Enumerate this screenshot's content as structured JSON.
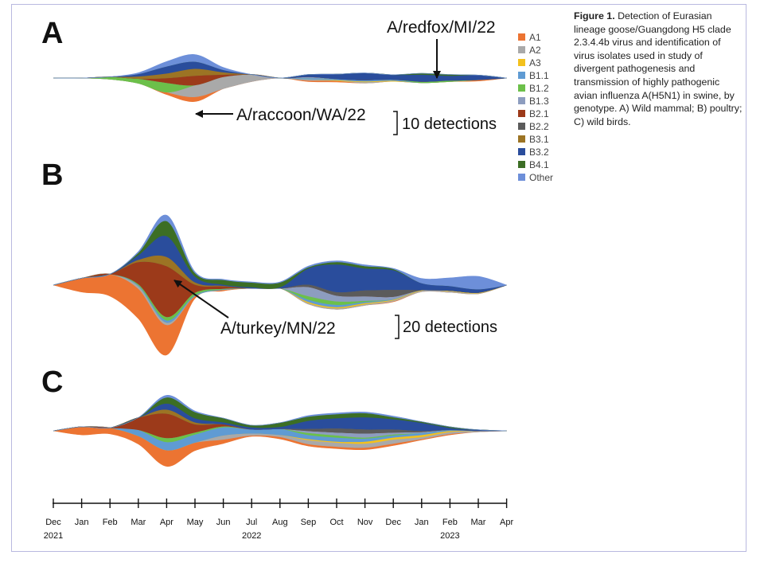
{
  "caption": {
    "label": "Figure 1.",
    "text": "Detection of Eurasian lineage goose/Guangdong H5 clade 2.3.4.4b virus and identification of virus isolates used in study of divergent pathogenesis and transmission of highly pathogenic avian influenza A(H5N1) in swine, by genotype. A) Wild mammal; B) poultry; C) wild birds."
  },
  "panels": {
    "A": {
      "letter": "A",
      "annotations": [
        "A/redfox/MI/22",
        "A/raccoon/WA/22"
      ],
      "scale_label": "10 detections"
    },
    "B": {
      "letter": "B",
      "annotations": [
        "A/turkey/MN/22"
      ],
      "scale_label": "20 detections"
    },
    "C": {
      "letter": "C"
    }
  },
  "chart_data": {
    "type": "area",
    "subtype": "streamgraph",
    "x": [
      "Dec 2021",
      "Jan",
      "Feb",
      "Mar",
      "Apr",
      "May",
      "Jun",
      "Jul",
      "Aug",
      "Sep",
      "Oct",
      "Nov",
      "Dec",
      "Jan 2023",
      "Feb",
      "Mar",
      "Apr"
    ],
    "x_tick_labels": [
      {
        "month": "Dec",
        "year": "2021"
      },
      {
        "month": "Jan",
        "year": ""
      },
      {
        "month": "Feb",
        "year": ""
      },
      {
        "month": "Mar",
        "year": ""
      },
      {
        "month": "Apr",
        "year": ""
      },
      {
        "month": "May",
        "year": ""
      },
      {
        "month": "Jun",
        "year": ""
      },
      {
        "month": "Jul",
        "year": "2022"
      },
      {
        "month": "Aug",
        "year": ""
      },
      {
        "month": "Sep",
        "year": ""
      },
      {
        "month": "Oct",
        "year": ""
      },
      {
        "month": "Nov",
        "year": ""
      },
      {
        "month": "Dec",
        "year": ""
      },
      {
        "month": "Jan",
        "year": ""
      },
      {
        "month": "Feb",
        "year": "2023"
      },
      {
        "month": "Mar",
        "year": ""
      },
      {
        "month": "Apr",
        "year": ""
      }
    ],
    "legend": [
      {
        "name": "A1",
        "color": "#ec7432"
      },
      {
        "name": "A2",
        "color": "#a9a9a9"
      },
      {
        "name": "A3",
        "color": "#f3c11d"
      },
      {
        "name": "B1.1",
        "color": "#5f9bd3"
      },
      {
        "name": "B1.2",
        "color": "#6cc04a"
      },
      {
        "name": "B1.3",
        "color": "#8d9dbf"
      },
      {
        "name": "B2.1",
        "color": "#9c3a1a"
      },
      {
        "name": "B2.2",
        "color": "#5b5b5b"
      },
      {
        "name": "B3.1",
        "color": "#9c7424"
      },
      {
        "name": "B3.2",
        "color": "#2a4d9c"
      },
      {
        "name": "B4.1",
        "color": "#3c6e25"
      },
      {
        "name": "Other",
        "color": "#6d8fd9"
      }
    ],
    "panels": [
      {
        "name": "A) Wild mammal",
        "series": [
          {
            "name": "A1",
            "values": [
              0,
              0,
              0,
              0,
              1,
              2,
              0,
              0,
              0,
              0.5,
              0.5,
              0,
              0,
              0,
              0,
              0.5,
              0
            ]
          },
          {
            "name": "A2",
            "values": [
              0,
              0,
              0,
              0,
              0,
              5,
              5,
              3,
              0,
              0.5,
              0,
              0.5,
              0,
              0,
              0,
              0,
              0
            ]
          },
          {
            "name": "A3",
            "values": [
              0,
              0,
              0,
              0,
              0,
              0,
              0,
              0,
              0,
              0,
              0.3,
              0.3,
              0.3,
              0,
              0,
              0,
              0
            ]
          },
          {
            "name": "B1.1",
            "values": [
              0,
              0,
              0,
              0,
              0,
              0,
              0,
              0,
              0,
              0.5,
              0.5,
              0.5,
              0.5,
              0,
              0,
              0,
              0
            ]
          },
          {
            "name": "B1.2",
            "values": [
              0,
              0,
              1,
              2,
              4,
              0,
              0,
              0,
              0,
              0,
              0,
              0,
              0,
              0.5,
              0.5,
              0,
              0
            ]
          },
          {
            "name": "B1.3",
            "values": [
              0,
              0,
              0,
              0,
              0,
              0,
              0,
              0,
              0,
              0.5,
              0,
              0,
              0,
              0,
              0,
              0,
              0
            ]
          },
          {
            "name": "B2.1",
            "values": [
              0,
              0,
              0,
              0,
              2,
              4,
              1,
              0,
              0,
              0,
              0,
              0,
              0,
              0,
              0,
              0,
              0
            ]
          },
          {
            "name": "B2.2",
            "values": [
              0,
              0,
              0,
              0,
              0,
              0,
              0,
              0,
              0,
              0,
              0,
              0,
              0,
              0,
              0,
              0,
              0
            ]
          },
          {
            "name": "B3.1",
            "values": [
              0,
              0,
              0,
              1,
              2,
              3,
              1,
              0,
              0,
              0,
              0,
              0,
              0,
              0,
              0,
              0,
              0
            ]
          },
          {
            "name": "B3.2",
            "values": [
              0,
              0,
              0,
              1,
              3,
              3,
              1,
              0,
              0,
              1,
              2,
              3,
              2,
              3,
              2,
              2,
              0
            ]
          },
          {
            "name": "B4.1",
            "values": [
              0,
              0,
              0,
              0,
              0,
              0,
              0,
              0,
              0,
              0,
              0,
              0,
              0,
              0.5,
              0.5,
              0,
              0
            ]
          },
          {
            "name": "Other",
            "values": [
              0,
              0,
              0,
              0.5,
              2,
              3,
              1,
              0,
              0,
              0,
              0,
              0,
              0,
              0,
              0,
              0,
              0
            ]
          }
        ]
      },
      {
        "name": "B) Poultry",
        "series": [
          {
            "name": "A1",
            "values": [
              0,
              12,
              19,
              26,
              26,
              2,
              1,
              0,
              0,
              0,
              0,
              0,
              0.5,
              0,
              0,
              0,
              0
            ]
          },
          {
            "name": "A2",
            "values": [
              0,
              0,
              0,
              2,
              2,
              0,
              0,
              0,
              0,
              1,
              1,
              1,
              1,
              1,
              1,
              0.5,
              0
            ]
          },
          {
            "name": "A3",
            "values": [
              0,
              0,
              0,
              0,
              0,
              0,
              0,
              0,
              0,
              1,
              1,
              1,
              0.5,
              0.5,
              0.5,
              0.5,
              0
            ]
          },
          {
            "name": "B1.1",
            "values": [
              0,
              0,
              0,
              1,
              2,
              1,
              0.5,
              0,
              0,
              2,
              2,
              1,
              0.5,
              0,
              0,
              0,
              0
            ]
          },
          {
            "name": "B1.2",
            "values": [
              0,
              0,
              0,
              1,
              3,
              2,
              0.5,
              0,
              0,
              3,
              3,
              1,
              0,
              0,
              0,
              0,
              0
            ]
          },
          {
            "name": "B1.3",
            "values": [
              0,
              0,
              0,
              0,
              0,
              0,
              0,
              0,
              0,
              8,
              5,
              4,
              2,
              0,
              0,
              0,
              0
            ]
          },
          {
            "name": "B2.1",
            "values": [
              0,
              0,
              0,
              19,
              44,
              7,
              2,
              0,
              0,
              0,
              0,
              0,
              0,
              0,
              0,
              0,
              0
            ]
          },
          {
            "name": "B2.2",
            "values": [
              0,
              0,
              0,
              0,
              0,
              0,
              0,
              0,
              0,
              2,
              3,
              5,
              6,
              0,
              0,
              0,
              0
            ]
          },
          {
            "name": "B3.1",
            "values": [
              0,
              0,
              0,
              2,
              8,
              2,
              0.5,
              0,
              0,
              0,
              0,
              0,
              0,
              0,
              0,
              0,
              0
            ]
          },
          {
            "name": "B3.2",
            "values": [
              0,
              0,
              0,
              4,
              18,
              5,
              1,
              1,
              1,
              14,
              24,
              19,
              17,
              6,
              4,
              3,
              0
            ]
          },
          {
            "name": "B4.1",
            "values": [
              0,
              0,
              0,
              2,
              13,
              3,
              4,
              4,
              4,
              1,
              2,
              2,
              1,
              0,
              0,
              0,
              0
            ]
          },
          {
            "name": "Other",
            "values": [
              0,
              0,
              0,
              1,
              5,
              1,
              0.5,
              0.5,
              0.5,
              1,
              1,
              1,
              0.5,
              4,
              7,
              11,
              0
            ]
          }
        ]
      },
      {
        "name": "C) Wild birds",
        "series": [
          {
            "name": "A1",
            "values": [
              0,
              4,
              3,
              4,
              8,
              4,
              2,
              0.5,
              1,
              1,
              1,
              1,
              1,
              0.5,
              0.5,
              0,
              0
            ]
          },
          {
            "name": "A2",
            "values": [
              0,
              0,
              0,
              0,
              0,
              0,
              2,
              1,
              1,
              2,
              2,
              2,
              2,
              1,
              1,
              0.5,
              0
            ]
          },
          {
            "name": "A3",
            "values": [
              0,
              0,
              0,
              0,
              0,
              0,
              0,
              0,
              0,
              0.5,
              0.5,
              1,
              1,
              1,
              0.5,
              0,
              0
            ]
          },
          {
            "name": "B1.1",
            "values": [
              0,
              0,
              0,
              3,
              4,
              4,
              4,
              2,
              3,
              2,
              2,
              1.5,
              1,
              1,
              0.5,
              0,
              0
            ]
          },
          {
            "name": "B1.2",
            "values": [
              0,
              0,
              0,
              0,
              2,
              1,
              0.5,
              0,
              0,
              1,
              1,
              0.5,
              0.5,
              0,
              0,
              0,
              0
            ]
          },
          {
            "name": "B1.3",
            "values": [
              0,
              0,
              0,
              0,
              0,
              0,
              0,
              0,
              0,
              1,
              1.5,
              2,
              1,
              0.5,
              0,
              0,
              0
            ]
          },
          {
            "name": "B2.1",
            "values": [
              0,
              0,
              0,
              6,
              12,
              4,
              1,
              0,
              0,
              0,
              0,
              0,
              0,
              0,
              0,
              0,
              0
            ]
          },
          {
            "name": "B2.2",
            "values": [
              0,
              0,
              0,
              0,
              0,
              0,
              0,
              0,
              0,
              1,
              2,
              2,
              1.5,
              0.5,
              0,
              0,
              0
            ]
          },
          {
            "name": "B3.1",
            "values": [
              0,
              0,
              0,
              0,
              2,
              1,
              0,
              0,
              0,
              0,
              0,
              0,
              0,
              0,
              0,
              0,
              0
            ]
          },
          {
            "name": "B3.2",
            "values": [
              0,
              0,
              0,
              0,
              3,
              2,
              1,
              1,
              1,
              4,
              5,
              6,
              5,
              4,
              1,
              0.5,
              0
            ]
          },
          {
            "name": "B4.1",
            "values": [
              0,
              0,
              0,
              0,
              3,
              3,
              2,
              1,
              2,
              2,
              2,
              2,
              1,
              0.5,
              0.5,
              0,
              0
            ]
          },
          {
            "name": "Other",
            "values": [
              0,
              0,
              0,
              0,
              1,
              0.5,
              0,
              0,
              0,
              0.5,
              0.5,
              0.5,
              0.5,
              0,
              0,
              0,
              0
            ]
          }
        ]
      }
    ]
  }
}
